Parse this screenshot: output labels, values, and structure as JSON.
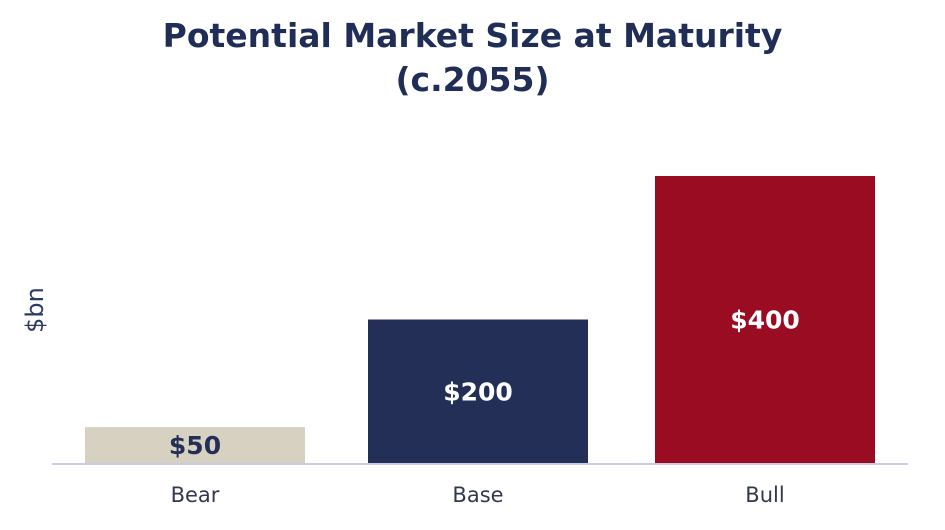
{
  "chart_data": {
    "type": "bar",
    "title": "Potential Market Size at Maturity",
    "subtitle": "(c.2055)",
    "categories": [
      "Bear",
      "Base",
      "Bull"
    ],
    "values": [
      50,
      200,
      400
    ],
    "data_labels": [
      "$50",
      "$200",
      "$400"
    ],
    "colors": [
      "#d6d1c0",
      "#232f57",
      "#990c22"
    ],
    "label_colors": [
      "#232f57",
      "#ffffff",
      "#ffffff"
    ],
    "xlabel": "",
    "ylabel": "$bn",
    "ylim": [
      0,
      400
    ],
    "grid": false,
    "legend": "none"
  },
  "colors": {
    "title": "#1f2d57",
    "axis": "#c9cbe8",
    "tick_text": "#33394d",
    "ylabel": "#2d3a66"
  }
}
